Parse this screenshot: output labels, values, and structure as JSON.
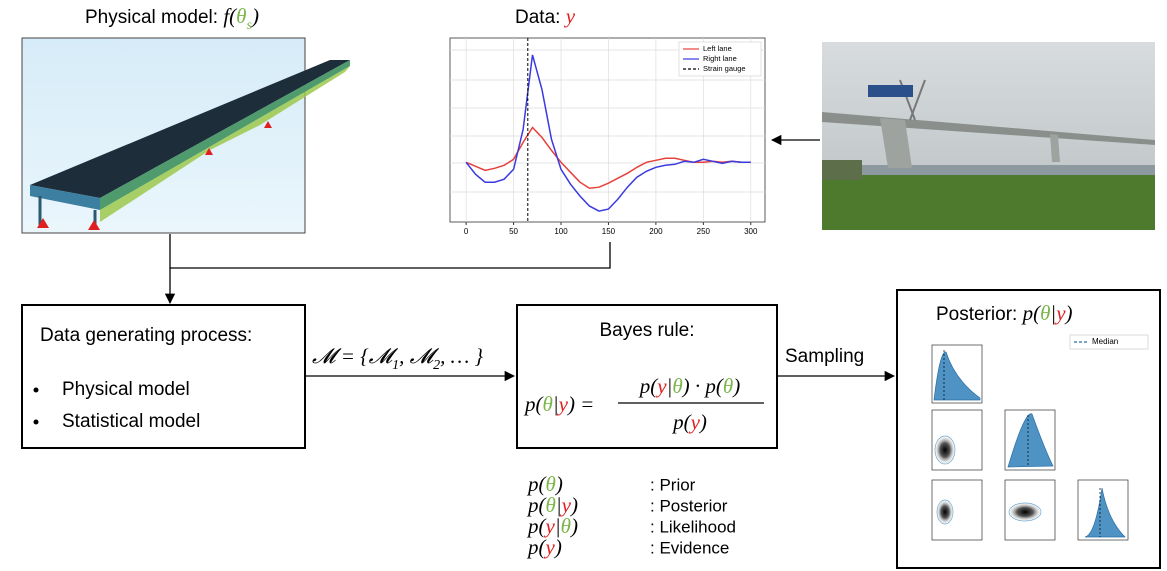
{
  "physical_model": {
    "label": "Physical model: ",
    "formula": [
      {
        "text": "f("
      },
      {
        "text": "θ",
        "color": "#7ab648"
      },
      {
        "text": "s",
        "color": "#7ab648",
        "sub": true
      },
      {
        "text": ")"
      }
    ]
  },
  "data_panel": {
    "label": "Data: ",
    "formula": [
      {
        "text": "y",
        "color": "#e02020"
      }
    ]
  },
  "chart_data": {
    "type": "line",
    "x": [
      0,
      10,
      20,
      30,
      40,
      50,
      60,
      70,
      80,
      90,
      100,
      110,
      120,
      130,
      140,
      150,
      160,
      170,
      180,
      190,
      200,
      210,
      220,
      230,
      240,
      250,
      260,
      270,
      280,
      290,
      300
    ],
    "series": [
      {
        "name": "Left lane",
        "color": "#e8403a",
        "values": [
          0,
          -0.4,
          -0.8,
          -0.6,
          -0.3,
          0.3,
          2,
          3.5,
          2.5,
          1.2,
          0,
          -1,
          -2,
          -2.6,
          -2.5,
          -2.1,
          -1.6,
          -1.1,
          -0.5,
          0,
          0.2,
          0.4,
          0.4,
          0.2,
          0,
          0,
          0.1,
          0,
          0.1,
          0,
          0
        ]
      },
      {
        "name": "Right lane",
        "color": "#3a3ae0",
        "values": [
          0,
          -1.2,
          -2,
          -2,
          -1.7,
          -0.7,
          3.3,
          10.8,
          7.3,
          2.3,
          -0.7,
          -2.2,
          -3.4,
          -4.4,
          -4.9,
          -4.7,
          -3.7,
          -2.5,
          -1.5,
          -0.9,
          -0.5,
          -0.3,
          -0.2,
          0.1,
          0,
          0.3,
          0.1,
          -0.1,
          0.1,
          0,
          0
        ]
      }
    ],
    "markers": [
      {
        "name": "Strain gauge",
        "x": 65,
        "color": "#000000"
      }
    ],
    "xlim": [
      -17,
      315
    ],
    "ylim": [
      -6,
      12.5
    ],
    "xticks": [
      0,
      50,
      100,
      150,
      200,
      250,
      300
    ],
    "grid": true,
    "legend": "upper right"
  },
  "edges": {
    "model_set": [
      {
        "text": "𝓜 = {𝓜"
      },
      {
        "text": "1",
        "sub": true
      },
      {
        "text": ", 𝓜"
      },
      {
        "text": "2",
        "sub": true
      },
      {
        "text": ", … }"
      }
    ],
    "sampling": "Sampling"
  },
  "dgp": {
    "title": "Data generating process:",
    "items": [
      "Physical model",
      "Statistical model"
    ]
  },
  "bayes": {
    "title": "Bayes rule:",
    "lhs": [
      {
        "text": "p("
      },
      {
        "text": "θ",
        "color": "#7ab648"
      },
      {
        "text": "|"
      },
      {
        "text": "y",
        "color": "#e02020"
      },
      {
        "text": ") ="
      }
    ],
    "numerator": [
      {
        "text": "p("
      },
      {
        "text": "y",
        "color": "#e02020"
      },
      {
        "text": "|"
      },
      {
        "text": "θ",
        "color": "#7ab648"
      },
      {
        "text": ") · p("
      },
      {
        "text": "θ",
        "color": "#7ab648"
      },
      {
        "text": ")"
      }
    ],
    "denominator": [
      {
        "text": "p("
      },
      {
        "text": "y",
        "color": "#e02020"
      },
      {
        "text": ")"
      }
    ]
  },
  "posterior": {
    "label": "Posterior: ",
    "formula": [
      {
        "text": "p("
      },
      {
        "text": "θ",
        "color": "#7ab648"
      },
      {
        "text": "|"
      },
      {
        "text": "y",
        "color": "#e02020"
      },
      {
        "text": ")"
      }
    ],
    "legend": "Median"
  },
  "glossary": [
    {
      "term": [
        {
          "text": "p("
        },
        {
          "text": "θ",
          "color": "#7ab648"
        },
        {
          "text": ")"
        }
      ],
      "meaning": ": Prior"
    },
    {
      "term": [
        {
          "text": "p("
        },
        {
          "text": "θ",
          "color": "#7ab648"
        },
        {
          "text": "|"
        },
        {
          "text": "y",
          "color": "#e02020"
        },
        {
          "text": ")"
        }
      ],
      "meaning": ": Posterior"
    },
    {
      "term": [
        {
          "text": "p("
        },
        {
          "text": "y",
          "color": "#e02020"
        },
        {
          "text": "|"
        },
        {
          "text": "θ",
          "color": "#7ab648"
        },
        {
          "text": ")"
        }
      ],
      "meaning": ": Likelihood"
    },
    {
      "term": [
        {
          "text": "p("
        },
        {
          "text": "y",
          "color": "#e02020"
        },
        {
          "text": ")"
        }
      ],
      "meaning": ": Evidence"
    }
  ]
}
